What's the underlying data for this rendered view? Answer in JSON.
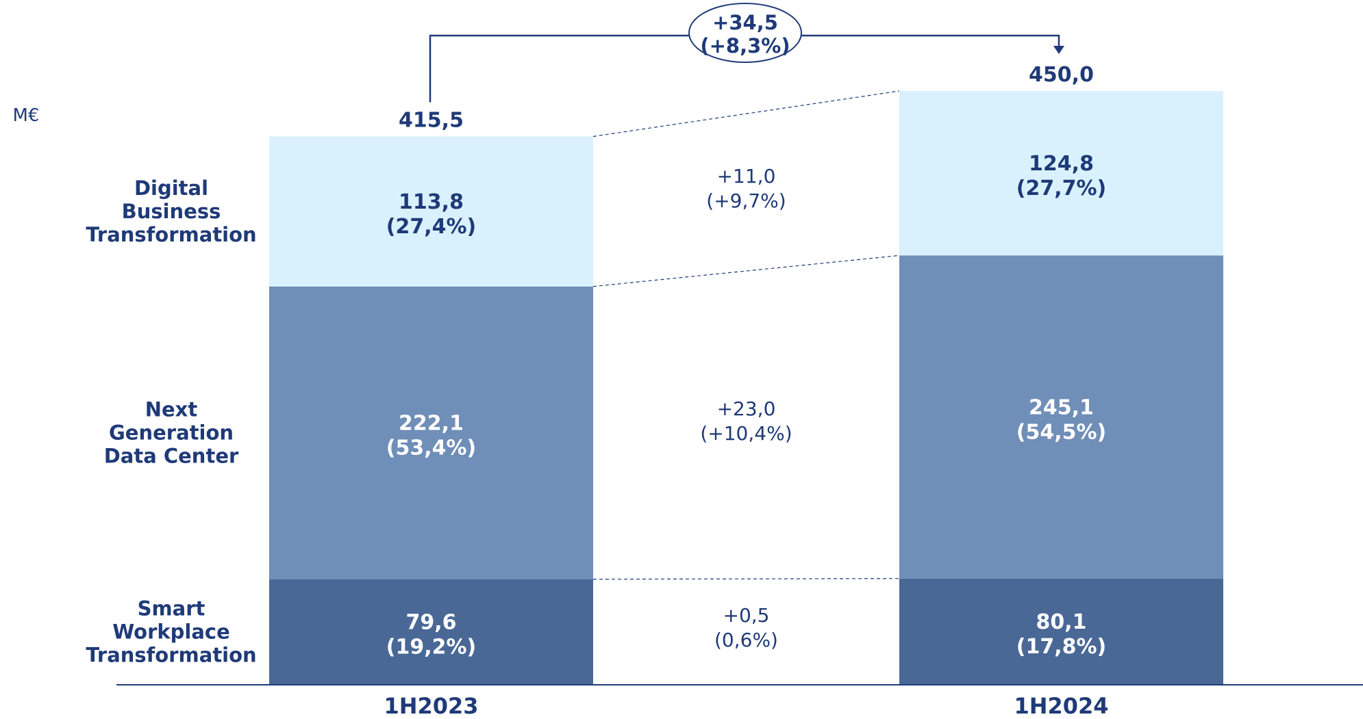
{
  "chart_data": {
    "type": "bar",
    "subtype": "stacked",
    "unit_label": "M€",
    "categories": [
      "1H2023",
      "1H2024"
    ],
    "series": [
      {
        "name": "Smart Workplace Transformation",
        "label_lines": [
          "Smart",
          "Workplace",
          "Transformation"
        ],
        "values": [
          79.6,
          80.1
        ],
        "value_labels": [
          "79,6",
          "80,1"
        ],
        "share_labels": [
          "(19,2%)",
          "(17,8%)"
        ],
        "change_label": "+0,5",
        "change_pct_label": "(0,6%)",
        "color": "#4a6896"
      },
      {
        "name": "Next Generation Data Center",
        "label_lines": [
          "Next",
          "Generation",
          "Data Center"
        ],
        "values": [
          222.1,
          245.1
        ],
        "value_labels": [
          "222,1",
          "245,1"
        ],
        "share_labels": [
          "(53,4%)",
          "(54,5%)"
        ],
        "change_label": "+23,0",
        "change_pct_label": "(+10,4%)",
        "color": "#6f8eb8"
      },
      {
        "name": "Digital Business Transformation",
        "label_lines": [
          "Digital",
          "Business",
          "Transformation"
        ],
        "values": [
          113.8,
          124.8
        ],
        "value_labels": [
          "113,8",
          "124,8"
        ],
        "share_labels": [
          "(27,4%)",
          "(27,7%)"
        ],
        "change_label": "+11,0",
        "change_pct_label": "(+9,7%)",
        "color": "#d9f1fc"
      }
    ],
    "totals": [
      415.5,
      450.0
    ],
    "total_labels": [
      "415,5",
      "450,0"
    ],
    "total_change_label": "+34,5",
    "total_change_pct_label": "(+8,3%)",
    "ylim": [
      0,
      450
    ],
    "legend": "none",
    "grid": false
  },
  "colors": {
    "text_dark": "#1f3a78",
    "text_light": "#ffffff",
    "axis": "#1f3a78",
    "connector": "#1f3a78"
  }
}
